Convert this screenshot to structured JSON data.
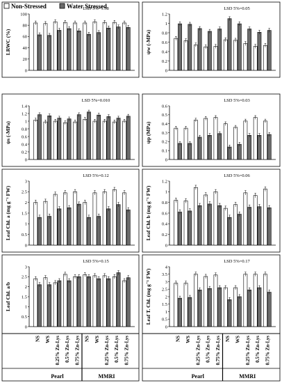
{
  "legend": {
    "non_stressed": "Non-Stressed",
    "water_stressed": "Water Stressed"
  },
  "xaxis": {
    "treatments": [
      "NS",
      "WS",
      "0.25% Zn-Lys",
      "0.5% Zn-Lys",
      "0.75% Zn-Lys"
    ],
    "groups": [
      "Pearl",
      "MMRI"
    ]
  },
  "colors": {
    "non_stressed": "#ffffff",
    "water_stressed": "#6b6b6b",
    "outline": "#000000"
  },
  "chart_data": [
    {
      "type": "bar",
      "ylabel": "LRWC (%)",
      "lsd": "LSD 5%=1.58",
      "ylim": [
        0,
        100
      ],
      "yticks": [
        0,
        20,
        40,
        60,
        80,
        100
      ],
      "tick_labels": [
        "0",
        "20",
        "40",
        "60",
        "80",
        "100"
      ],
      "series": [
        {
          "name": "Non-Stressed",
          "values": [
            84,
            83,
            86,
            85,
            84,
            84,
            86,
            85,
            85,
            84
          ]
        },
        {
          "name": "Water Stressed",
          "values": [
            63,
            62,
            71,
            74,
            70,
            64,
            67,
            75,
            77,
            76
          ]
        }
      ]
    },
    {
      "type": "bar",
      "ylabel": "ψw (-MPa)",
      "lsd": "LSD 5%=0.05",
      "ylim": [
        0,
        1.2
      ],
      "yticks": [
        0,
        0.2,
        0.4,
        0.6,
        0.8,
        1,
        1.2
      ],
      "tick_labels": [
        "0",
        "0.2",
        "0.4",
        "0.6",
        "0.8",
        "1",
        "1.2"
      ],
      "series": [
        {
          "name": "Non-Stressed",
          "values": [
            0.68,
            0.63,
            0.54,
            0.5,
            0.51,
            0.65,
            0.64,
            0.57,
            0.51,
            0.53
          ]
        },
        {
          "name": "Water Stressed",
          "values": [
            0.99,
            0.98,
            0.89,
            0.83,
            0.88,
            1.1,
            0.99,
            0.88,
            0.81,
            0.85
          ]
        }
      ]
    },
    {
      "type": "bar",
      "ylabel": "ψs (-MPa)",
      "lsd": "LSD 5%=0.010",
      "ylim": [
        0,
        1.4
      ],
      "yticks": [
        0,
        0.2,
        0.4,
        0.6,
        0.8,
        1,
        1.2,
        1.4
      ],
      "tick_labels": [
        "0",
        "0.2",
        "0.4",
        "0.6",
        "0.8",
        "1",
        "1.2",
        "1.4"
      ],
      "series": [
        {
          "name": "Non-Stressed",
          "values": [
            1.03,
            0.98,
            1.0,
            0.96,
            0.98,
            1.05,
            1.0,
            1.0,
            0.98,
            1.0
          ]
        },
        {
          "name": "Water Stressed",
          "values": [
            1.17,
            1.14,
            1.08,
            1.06,
            1.17,
            1.24,
            1.16,
            1.12,
            1.08,
            1.13
          ]
        }
      ]
    },
    {
      "type": "bar",
      "ylabel": "ψp (MPa)",
      "lsd": "LSD 5%=0.03",
      "ylim": [
        0,
        0.6
      ],
      "yticks": [
        0,
        0.1,
        0.2,
        0.3,
        0.4,
        0.5,
        0.6
      ],
      "tick_labels": [
        "0",
        "0.1",
        "0.2",
        "0.3",
        "0.4",
        "0.5",
        "0.6"
      ],
      "series": [
        {
          "name": "Non-Stressed",
          "values": [
            0.35,
            0.35,
            0.44,
            0.46,
            0.47,
            0.4,
            0.36,
            0.43,
            0.47,
            0.43
          ]
        },
        {
          "name": "Water Stressed",
          "values": [
            0.18,
            0.18,
            0.25,
            0.27,
            0.29,
            0.14,
            0.17,
            0.27,
            0.27,
            0.28
          ]
        }
      ]
    },
    {
      "type": "bar",
      "ylabel": "Leaf Chl. a (mg g⁻¹ FW)",
      "lsd": "LSD 5%=0.12",
      "ylim": [
        0,
        3
      ],
      "yticks": [
        0,
        0.5,
        1,
        1.5,
        2,
        2.5,
        3
      ],
      "tick_labels": [
        "0",
        "0.5",
        "1",
        "1.5",
        "2",
        "2.5",
        "3"
      ],
      "series": [
        {
          "name": "Non-Stressed",
          "values": [
            2.0,
            2.05,
            2.38,
            2.45,
            2.5,
            2.0,
            2.45,
            2.5,
            2.6,
            2.45
          ]
        },
        {
          "name": "Water Stressed",
          "values": [
            1.3,
            1.35,
            1.7,
            1.75,
            1.92,
            1.3,
            1.35,
            1.7,
            1.9,
            1.65
          ]
        }
      ]
    },
    {
      "type": "bar",
      "ylabel": "Leaf Chl. b (mg g⁻¹ FW)",
      "lsd": "LSD 5%=0.06",
      "ylim": [
        0,
        1.2
      ],
      "yticks": [
        0,
        0.2,
        0.4,
        0.6,
        0.8,
        1,
        1.2
      ],
      "tick_labels": [
        "0",
        "0.2",
        "0.4",
        "0.6",
        "0.8",
        "1",
        "1.2"
      ],
      "series": [
        {
          "name": "Non-Stressed",
          "values": [
            0.84,
            0.83,
            1.08,
            0.94,
            1.0,
            0.69,
            0.76,
            0.98,
            0.93,
            1.05
          ]
        },
        {
          "name": "Water Stressed",
          "values": [
            0.62,
            0.64,
            0.74,
            0.77,
            0.74,
            0.52,
            0.58,
            0.71,
            0.72,
            0.7
          ]
        }
      ]
    },
    {
      "type": "bar",
      "ylabel": "Leaf Chl. a/b",
      "lsd": "LSD 5%=0.15",
      "ylim": [
        0,
        3
      ],
      "yticks": [
        0,
        0.5,
        1,
        1.5,
        2,
        2.5,
        3
      ],
      "tick_labels": [
        "0",
        "0.5",
        "1",
        "1.5",
        "2",
        "2.5",
        "3"
      ],
      "series": [
        {
          "name": "Non-Stressed",
          "values": [
            2.4,
            2.45,
            2.2,
            2.62,
            2.5,
            2.6,
            2.55,
            2.55,
            2.5,
            2.3
          ]
        },
        {
          "name": "Water Stressed",
          "values": [
            2.1,
            2.1,
            2.3,
            2.3,
            2.5,
            2.5,
            2.4,
            2.4,
            2.7,
            2.45
          ]
        }
      ]
    },
    {
      "type": "bar",
      "ylabel": "Leaf T. Chl. (mg g⁻¹ FW)",
      "lsd": "LSD 5%=0.17",
      "ylim": [
        0,
        4
      ],
      "yticks": [
        0,
        0.5,
        1,
        1.5,
        2,
        2.5,
        3,
        3.5,
        4
      ],
      "tick_labels": [
        "0",
        "0.5",
        "1",
        "1.5",
        "2",
        "2.5",
        "3",
        "3.5",
        "4"
      ],
      "series": [
        {
          "name": "Non-Stressed",
          "values": [
            2.9,
            2.9,
            3.5,
            3.35,
            3.45,
            2.6,
            2.6,
            3.5,
            3.5,
            3.5
          ]
        },
        {
          "name": "Water Stressed",
          "values": [
            1.9,
            1.95,
            2.45,
            2.55,
            2.6,
            1.8,
            2.0,
            2.45,
            2.6,
            2.3
          ]
        }
      ]
    }
  ]
}
